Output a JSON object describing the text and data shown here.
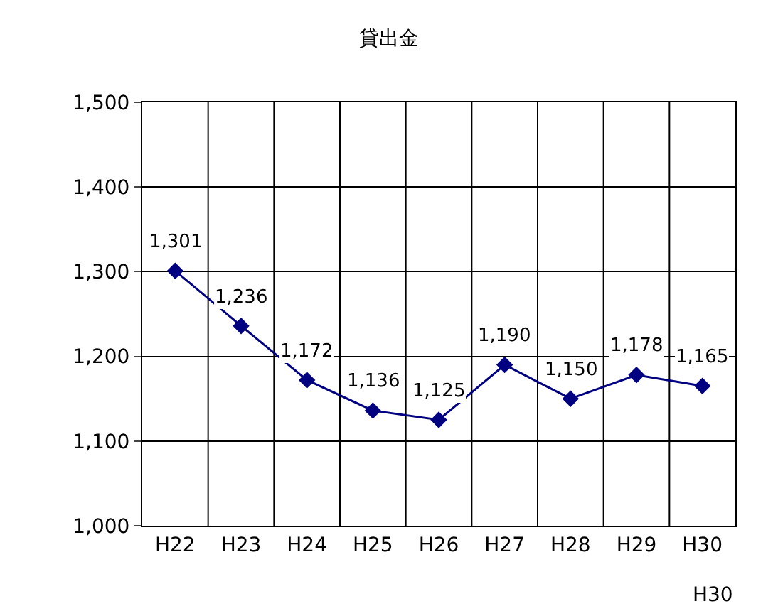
{
  "chart_data": {
    "type": "line",
    "title": "貸出金",
    "categories": [
      "H22",
      "H23",
      "H24",
      "H25",
      "H26",
      "H27",
      "H28",
      "H29",
      "H30"
    ],
    "series": [
      {
        "color": "#000080",
        "values": [
          1301,
          1236,
          1172,
          1136,
          1125,
          1190,
          1150,
          1178,
          1165
        ]
      }
    ],
    "ylim": [
      1000,
      1500
    ],
    "yticks": [
      {
        "value": 1000,
        "label": "1,000"
      },
      {
        "value": 1100,
        "label": "1,100"
      },
      {
        "value": 1200,
        "label": "1,200"
      },
      {
        "value": 1300,
        "label": "1,300"
      },
      {
        "value": 1400,
        "label": "1,400"
      },
      {
        "value": 1500,
        "label": "1,500"
      }
    ],
    "grid": true,
    "marker": "diamond",
    "line_style": "solid",
    "value_labels": [
      "1,301",
      "1,236",
      "1,172",
      "1,136",
      "1,125",
      "1,190",
      "1,150",
      "1,178",
      "1,165"
    ],
    "annotations": [
      "H30"
    ]
  }
}
